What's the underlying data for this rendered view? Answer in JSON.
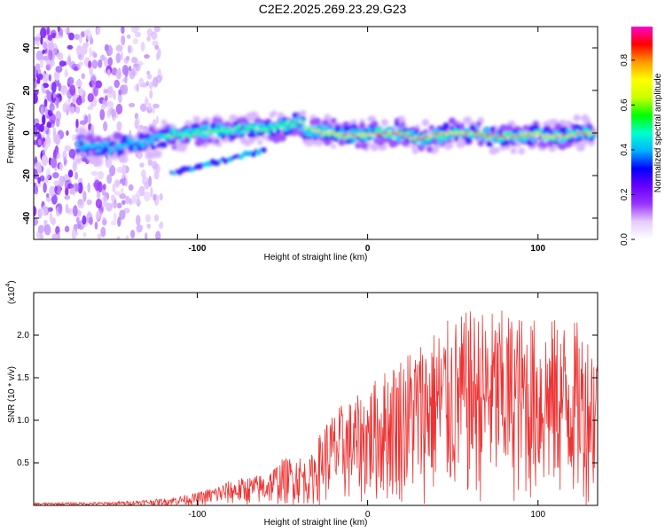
{
  "chart_data": [
    {
      "type": "heatmap",
      "title": "C2E2.2025.269.23.29.G23",
      "xlabel": "Height of straight line (km)",
      "ylabel": "Frequency (Hz)",
      "xlim": [
        -196,
        135
      ],
      "ylim": [
        -50,
        50
      ],
      "x_ticks": [
        -100,
        0,
        100
      ],
      "y_ticks": [
        -40,
        -20,
        0,
        20,
        40
      ],
      "colorbar": {
        "label": "Normalized spectral amplitude",
        "range": [
          0,
          0.95
        ],
        "ticks": [
          0.0,
          0.2,
          0.4,
          0.6,
          0.8
        ],
        "tick_labels": [
          "0.0",
          "0.2",
          "0.4",
          "0.6",
          "0.8"
        ],
        "colors": [
          "#ffffff",
          "#e6ccff",
          "#9933ff",
          "#6600ff",
          "#0000ff",
          "#00b3ff",
          "#00ffcc",
          "#00ff00",
          "#ccff00",
          "#ffff00",
          "#ff9900",
          "#ff0000",
          "#ff00cc"
        ]
      },
      "trace": {
        "description": "main spectral band centre frequency vs height",
        "x": [
          -160,
          -150,
          -140,
          -130,
          -120,
          -110,
          -100,
          -90,
          -80,
          -70,
          -60,
          -50,
          -40,
          -35,
          -30,
          -20,
          -10,
          0,
          10,
          20,
          25,
          30,
          40,
          50,
          60,
          70,
          80,
          90,
          100,
          110,
          120,
          130
        ],
        "y": [
          -6,
          -8,
          -5,
          -4,
          -2,
          -1,
          0,
          1,
          1,
          2,
          2,
          3,
          5,
          1,
          1,
          0,
          -1,
          -1,
          0,
          0,
          -2,
          -3,
          -1,
          0,
          0,
          -1,
          -2,
          -1,
          -1,
          -2,
          -1,
          0
        ]
      },
      "secondary_trace": {
        "x": [
          -115,
          -100,
          -90,
          -80,
          -70,
          -60
        ],
        "y": [
          -19,
          -16,
          -14,
          -12,
          -10,
          -8
        ]
      }
    },
    {
      "type": "line",
      "title": "",
      "xlabel": "Height of straight line (km)",
      "ylabel": "SNR (10 * v/v)",
      "scale_label": "(x10",
      "scale_exponent": "4",
      "xlim": [
        -196,
        135
      ],
      "ylim": [
        0,
        2.5
      ],
      "x_ticks": [
        -100,
        0,
        100
      ],
      "y_ticks": [
        0.5,
        1.0,
        1.5,
        2.0
      ],
      "y_tick_labels": [
        "0.5",
        "1.0",
        "1.5",
        "2.0"
      ],
      "color": "#ee3333",
      "envelope": {
        "description": "approximate upper envelope of the noisy SNR trace (x10^4)",
        "x": [
          -196,
          -150,
          -120,
          -100,
          -80,
          -60,
          -50,
          -40,
          -35,
          -25,
          -15,
          -5,
          5,
          20,
          40,
          60,
          80,
          100,
          120,
          135
        ],
        "y": [
          0.03,
          0.04,
          0.08,
          0.15,
          0.3,
          0.38,
          0.55,
          0.6,
          0.5,
          1.0,
          1.2,
          1.3,
          1.5,
          1.8,
          2.1,
          2.3,
          2.3,
          2.2,
          2.2,
          2.0
        ]
      }
    }
  ]
}
